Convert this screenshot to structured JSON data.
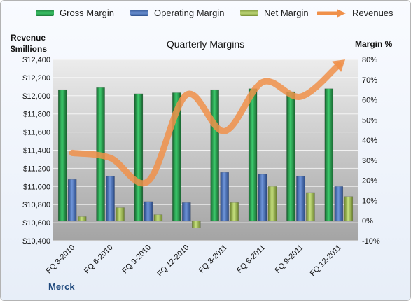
{
  "legend": {
    "items": [
      {
        "label": "Gross Margin",
        "color": "#2a9a4c"
      },
      {
        "label": "Operating Margin",
        "color": "#4a72b8"
      },
      {
        "label": "Net Margin",
        "color": "#a6c060"
      },
      {
        "label": "Revenues",
        "color": "#f0904a"
      }
    ]
  },
  "axes": {
    "left_title_line1": "Revenue",
    "left_title_line2": "$millions",
    "right_title": "Margin %"
  },
  "footer": {
    "company": "Merck"
  },
  "chart_data": {
    "type": "bar",
    "title": "Quarterly Margins",
    "categories": [
      "FQ 3-2010",
      "FQ 6-2010",
      "FQ 9-2010",
      "FQ 12-2010",
      "FQ 3-2011",
      "FQ 6-2011",
      "FQ 9-2011",
      "FQ 12-2011"
    ],
    "series": [
      {
        "name": "Gross Margin",
        "axis": "right",
        "color": "#2a9a4c",
        "values": [
          65,
          66,
          63,
          63.5,
          65,
          65.5,
          64,
          65.5
        ]
      },
      {
        "name": "Operating Margin",
        "axis": "right",
        "color": "#4a72b8",
        "values": [
          20.5,
          22,
          9.5,
          9,
          24,
          23,
          22,
          17
        ]
      },
      {
        "name": "Net Margin",
        "axis": "right",
        "color": "#a6c060",
        "values": [
          2,
          6.5,
          3,
          -3.5,
          9,
          17,
          14,
          12
        ]
      },
      {
        "name": "Revenues",
        "axis": "left",
        "type": "line",
        "color": "#f0904a",
        "values": [
          11370,
          11315,
          11060,
          12010,
          11610,
          12150,
          11990,
          12340
        ]
      }
    ],
    "left_axis": {
      "min": 10400,
      "max": 12400,
      "step": 200,
      "tick_labels": [
        "$10,400",
        "$10,600",
        "$10,800",
        "$11,000",
        "$11,200",
        "$11,400",
        "$11,600",
        "$11,800",
        "$12,000",
        "$12,200",
        "$12,400"
      ]
    },
    "right_axis": {
      "min": -10,
      "max": 80,
      "step": 10,
      "tick_labels": [
        "-10%",
        "0%",
        "10%",
        "20%",
        "30%",
        "40%",
        "50%",
        "60%",
        "70%",
        "80%"
      ]
    },
    "grid": true,
    "legend_position": "top"
  }
}
